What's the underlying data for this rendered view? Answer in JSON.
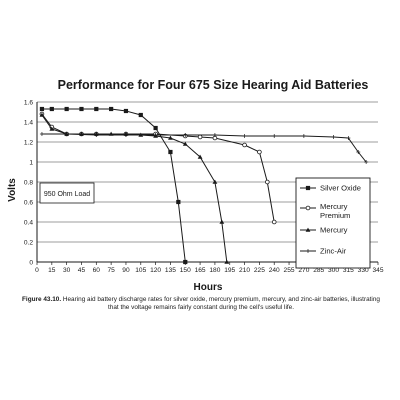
{
  "chart_data": {
    "type": "line",
    "title": "Performance for Four 675 Size Hearing Aid Batteries",
    "xlabel": "Hours",
    "ylabel": "Volts",
    "xlim": [
      0,
      345
    ],
    "ylim": [
      0,
      1.6
    ],
    "x_ticks": [
      0,
      15,
      30,
      45,
      60,
      75,
      90,
      105,
      120,
      135,
      150,
      165,
      180,
      195,
      210,
      225,
      240,
      255,
      270,
      285,
      300,
      315,
      330,
      345
    ],
    "y_ticks": [
      {
        "value": 0,
        "label": "0"
      },
      {
        "value": 0.2,
        "label": "0.2"
      },
      {
        "value": 0.4,
        "label": "0.4"
      },
      {
        "value": 0.6,
        "label": "0.6"
      },
      {
        "value": 0.8,
        "label": "0.8"
      },
      {
        "value": 1.0,
        "label": "1"
      },
      {
        "value": 1.2,
        "label": "1.2"
      },
      {
        "value": 1.4,
        "label": "1.4"
      },
      {
        "value": 1.6,
        "label": "1.6"
      }
    ],
    "grid": "horizontal",
    "annotation": "950 Ohm Load",
    "legend_position": "right",
    "series": [
      {
        "name": "Silver Oxide",
        "marker": "square",
        "points": [
          [
            5,
            1.53
          ],
          [
            15,
            1.53
          ],
          [
            30,
            1.53
          ],
          [
            45,
            1.53
          ],
          [
            60,
            1.53
          ],
          [
            75,
            1.53
          ],
          [
            90,
            1.51
          ],
          [
            105,
            1.47
          ],
          [
            120,
            1.34
          ],
          [
            135,
            1.1
          ],
          [
            143,
            0.6
          ],
          [
            150,
            0.0
          ]
        ]
      },
      {
        "name": "Mercury Premium",
        "marker": "circle",
        "points": [
          [
            5,
            1.48
          ],
          [
            15,
            1.35
          ],
          [
            30,
            1.28
          ],
          [
            45,
            1.28
          ],
          [
            60,
            1.28
          ],
          [
            90,
            1.28
          ],
          [
            120,
            1.28
          ],
          [
            150,
            1.26
          ],
          [
            165,
            1.25
          ],
          [
            180,
            1.24
          ],
          [
            210,
            1.17
          ],
          [
            225,
            1.1
          ],
          [
            233,
            0.8
          ],
          [
            240,
            0.4
          ]
        ]
      },
      {
        "name": "Mercury",
        "marker": "triangle",
        "points": [
          [
            5,
            1.47
          ],
          [
            15,
            1.33
          ],
          [
            30,
            1.28
          ],
          [
            45,
            1.28
          ],
          [
            60,
            1.28
          ],
          [
            75,
            1.28
          ],
          [
            90,
            1.28
          ],
          [
            105,
            1.27
          ],
          [
            120,
            1.26
          ],
          [
            135,
            1.24
          ],
          [
            150,
            1.18
          ],
          [
            165,
            1.05
          ],
          [
            180,
            0.8
          ],
          [
            187,
            0.4
          ],
          [
            192,
            0.0
          ]
        ]
      },
      {
        "name": "Zinc-Air",
        "marker": "cross",
        "points": [
          [
            5,
            1.28
          ],
          [
            30,
            1.28
          ],
          [
            60,
            1.27
          ],
          [
            90,
            1.27
          ],
          [
            120,
            1.27
          ],
          [
            150,
            1.27
          ],
          [
            180,
            1.27
          ],
          [
            210,
            1.26
          ],
          [
            240,
            1.26
          ],
          [
            270,
            1.26
          ],
          [
            300,
            1.25
          ],
          [
            315,
            1.24
          ],
          [
            325,
            1.1
          ],
          [
            333,
            1.0
          ]
        ]
      }
    ]
  },
  "caption": {
    "label": "Figure 43.10.",
    "text": "Hearing aid battery discharge rates for silver oxide, mercury premium, mercury, and zinc-air batteries, illustrating that the voltage remains fairly constant during the cell's useful life."
  }
}
